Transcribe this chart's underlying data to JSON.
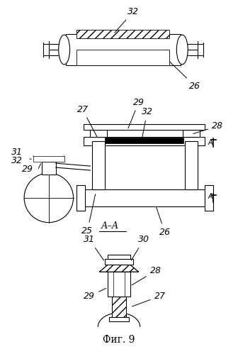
{
  "title": "Фиг. 9",
  "section_label": "А–А",
  "bg_color": "#ffffff",
  "line_color": "#000000",
  "hatch_color": "#000000",
  "figsize": [
    3.36,
    4.99
  ],
  "dpi": 100,
  "labels": {
    "32_top": "32",
    "26_top": "26",
    "31": "31",
    "29_left": "29",
    "32_left": "32",
    "27": "27",
    "29_mid": "29",
    "32_mid": "32",
    "A_marker": "А",
    "28_right": "28",
    "25": "25",
    "26_bot": "26",
    "31_bot": "31",
    "30": "30",
    "29_bot": "29",
    "28_bot": "28",
    "27_bot": "27"
  }
}
